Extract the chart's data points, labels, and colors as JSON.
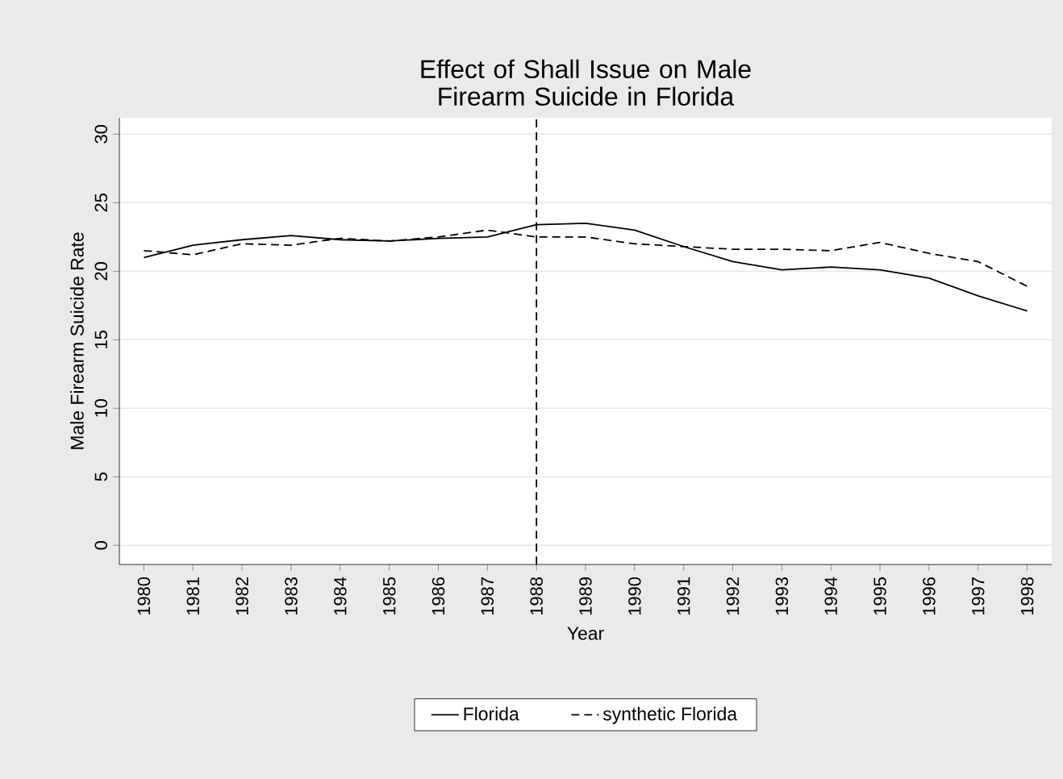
{
  "chart_data": {
    "type": "line",
    "title": "Effect of Shall Issue on Male Firearm Suicide in Florida",
    "xlabel": "Year",
    "ylabel": "Male Firearm Suicide Rate",
    "x": [
      1980,
      1981,
      1982,
      1983,
      1984,
      1985,
      1986,
      1987,
      1988,
      1989,
      1990,
      1991,
      1992,
      1993,
      1994,
      1995,
      1996,
      1997,
      1998
    ],
    "series": [
      {
        "name": "Florida",
        "color": "#000000",
        "line_style": "solid",
        "values": [
          21.0,
          21.9,
          22.3,
          22.6,
          22.3,
          22.2,
          22.4,
          22.5,
          23.4,
          23.5,
          23.0,
          21.8,
          20.7,
          20.1,
          20.3,
          20.1,
          19.5,
          18.2,
          17.1
        ]
      },
      {
        "name": "synthetic Florida",
        "color": "#000000",
        "line_style": "dashed",
        "values": [
          21.5,
          21.2,
          22.0,
          21.9,
          22.4,
          22.2,
          22.5,
          23.0,
          22.5,
          22.5,
          22.0,
          21.8,
          21.6,
          21.6,
          21.5,
          22.1,
          21.3,
          20.7,
          18.9
        ]
      }
    ],
    "xlim": [
      1979.5,
      1998.5
    ],
    "xticks": [
      1980,
      1981,
      1982,
      1983,
      1984,
      1985,
      1986,
      1987,
      1988,
      1989,
      1990,
      1991,
      1992,
      1993,
      1994,
      1995,
      1996,
      1997,
      1998
    ],
    "ylim": [
      -1.4,
      31.2
    ],
    "yticks": [
      0,
      5,
      10,
      15,
      20,
      25,
      30
    ],
    "ref_lines": [
      {
        "axis": "x",
        "value": 1988,
        "color": "#000000",
        "line_style": "dashed"
      }
    ],
    "grid": "y",
    "legend": "bottom",
    "marker": "none"
  }
}
